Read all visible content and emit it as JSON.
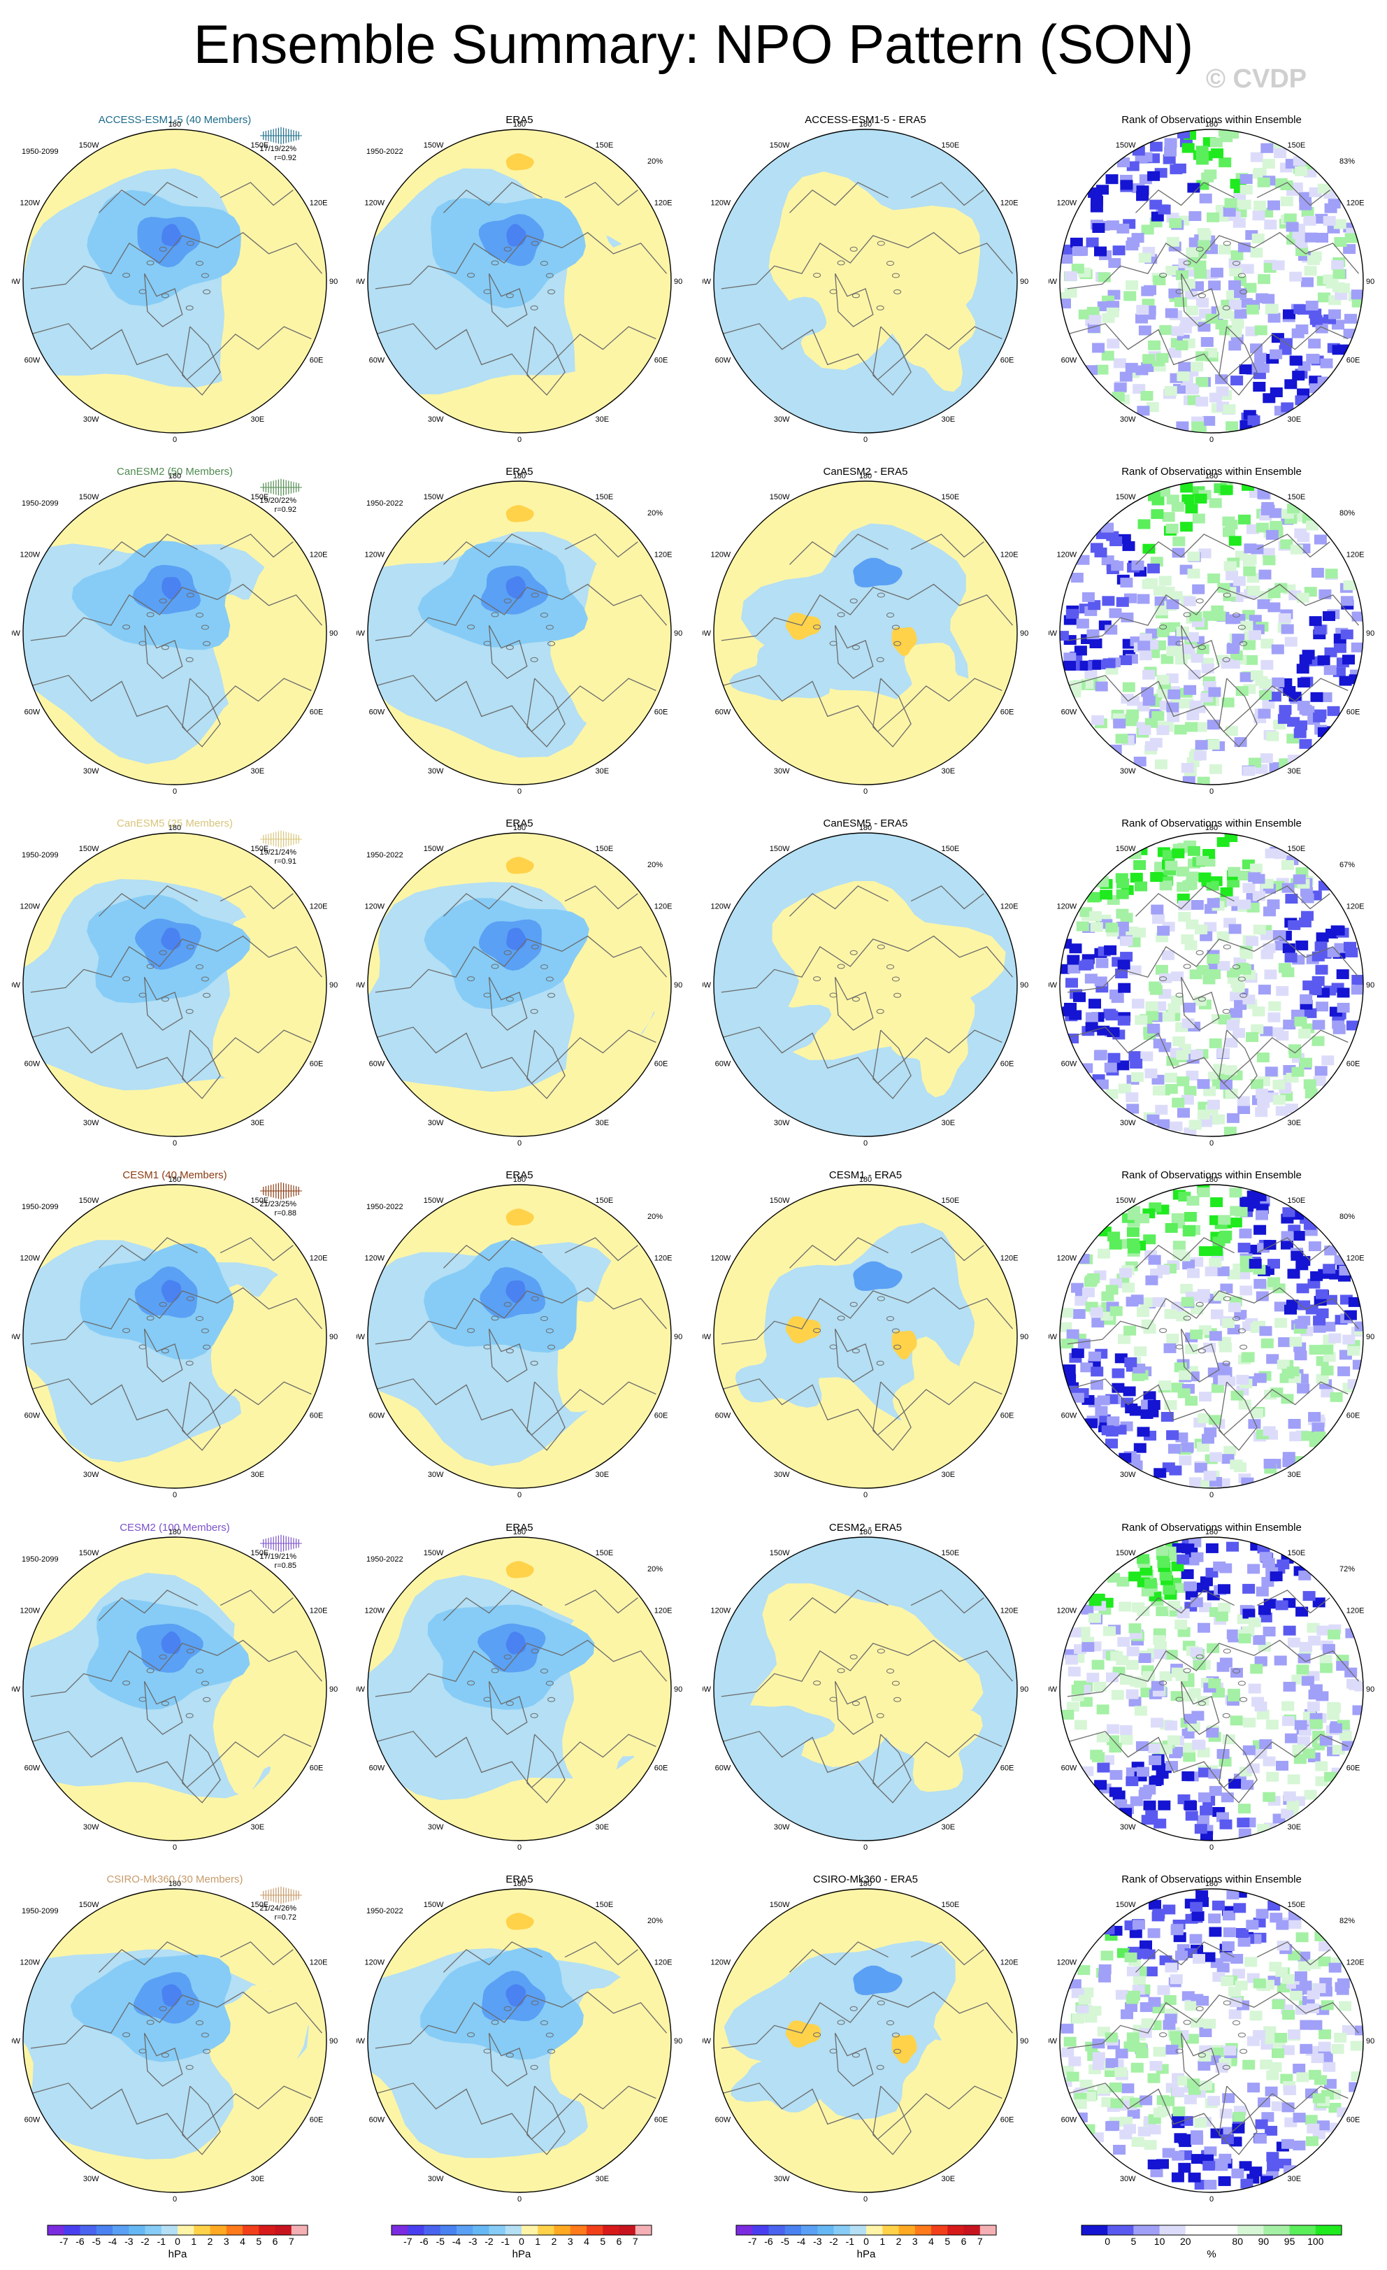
{
  "title": "Ensemble Summary: NPO Pattern (SON)",
  "watermark": "© CVDP",
  "rows": [
    {
      "model": "ACCESS-ESM1-5 (40 Members)",
      "model_color": "#1b6b8a",
      "model_period": "1950-2099",
      "stat_text": "17/19/22%",
      "r_text": "r=0.92",
      "obs_title": "ERA5",
      "obs_period": "1950-2022",
      "obs_pct": "20%",
      "diff_title": "ACCESS-ESM1-5 - ERA5",
      "rank_title": "Rank of Observations within Ensemble",
      "rank_pct": "83%"
    },
    {
      "model": "CanESM2 (50 Members)",
      "model_color": "#4f8a4f",
      "model_period": "1950-2099",
      "stat_text": "19/20/22%",
      "r_text": "r=0.92",
      "obs_title": "ERA5",
      "obs_period": "1950-2022",
      "obs_pct": "20%",
      "diff_title": "CanESM2 - ERA5",
      "rank_title": "Rank of Observations within Ensemble",
      "rank_pct": "80%"
    },
    {
      "model": "CanESM5 (25 Members)",
      "model_color": "#d8c47a",
      "model_period": "1950-2099",
      "stat_text": "19/21/24%",
      "r_text": "r=0.91",
      "obs_title": "ERA5",
      "obs_period": "1950-2022",
      "obs_pct": "20%",
      "diff_title": "CanESM5 - ERA5",
      "rank_title": "Rank of Observations within Ensemble",
      "rank_pct": "67%"
    },
    {
      "model": "CESM1 (40 Members)",
      "model_color": "#8a3b12",
      "model_period": "1950-2099",
      "stat_text": "21/23/25%",
      "r_text": "r=0.88",
      "obs_title": "ERA5",
      "obs_period": "1950-2022",
      "obs_pct": "20%",
      "diff_title": "CESM1 - ERA5",
      "rank_title": "Rank of Observations within Ensemble",
      "rank_pct": "80%"
    },
    {
      "model": "CESM2 (100 Members)",
      "model_color": "#7b52c9",
      "model_period": "1950-2099",
      "stat_text": "17/19/21%",
      "r_text": "r=0.85",
      "obs_title": "ERA5",
      "obs_period": "1950-2022",
      "obs_pct": "20%",
      "diff_title": "CESM2 - ERA5",
      "rank_title": "Rank of Observations within Ensemble",
      "rank_pct": "72%"
    },
    {
      "model": "CSIRO-Mk360 (30 Members)",
      "model_color": "#c79a6a",
      "model_period": "1950-2099",
      "stat_text": "21/24/26%",
      "r_text": "r=0.72",
      "obs_title": "ERA5",
      "obs_period": "1950-2022",
      "obs_pct": "20%",
      "diff_title": "CSIRO-Mk360 - ERA5",
      "rank_title": "Rank of Observations within Ensemble",
      "rank_pct": "82%"
    }
  ],
  "map_labels": {
    "top": "180",
    "bottom": "0",
    "upper_left": "150W",
    "upper_right": "150E",
    "left_upper": "120W",
    "right_upper": "120E",
    "left_mid": "90W",
    "right_mid": "90E",
    "left_lower": "60W",
    "right_lower": "60E",
    "lower_left": "30W",
    "lower_right": "30E"
  },
  "hpa_colorbar": {
    "labels": [
      "-7",
      "-6",
      "-5",
      "-4",
      "-3",
      "-2",
      "-1",
      "0",
      "1",
      "2",
      "3",
      "4",
      "5",
      "6",
      "7"
    ],
    "colors": [
      "#7b2be0",
      "#4a3ff0",
      "#4a64f0",
      "#4a82f2",
      "#5aa0f4",
      "#66b8f4",
      "#86ccf6",
      "#b4dff4",
      "#fff4a8",
      "#ffd24a",
      "#ffaa22",
      "#ff7a1a",
      "#f2401a",
      "#d81a1a",
      "#c8141e",
      "#f4b0b4"
    ],
    "unit": "hPa"
  },
  "rank_colorbar": {
    "labels": [
      "0",
      "5",
      "10",
      "20",
      "80",
      "90",
      "95",
      "100"
    ],
    "colors": [
      "#1414d2",
      "#5a5af0",
      "#a0a0f8",
      "#dcdcfa",
      "#ffffff",
      "#ffffff",
      "#d6f6d6",
      "#a4f0a4",
      "#5aee5a",
      "#1eea1e"
    ],
    "unit": "%"
  },
  "colors": {
    "positive_fill": "#fdf5a6",
    "negative_fill": "#b4dff4",
    "medium_negative": "#86ccf6",
    "strong_negative": "#5aa0f4",
    "core_negative": "#4a82f2",
    "positive_core": "#ffd24a",
    "rank_low": "#1414d2",
    "rank_high": "#1eea1e"
  }
}
